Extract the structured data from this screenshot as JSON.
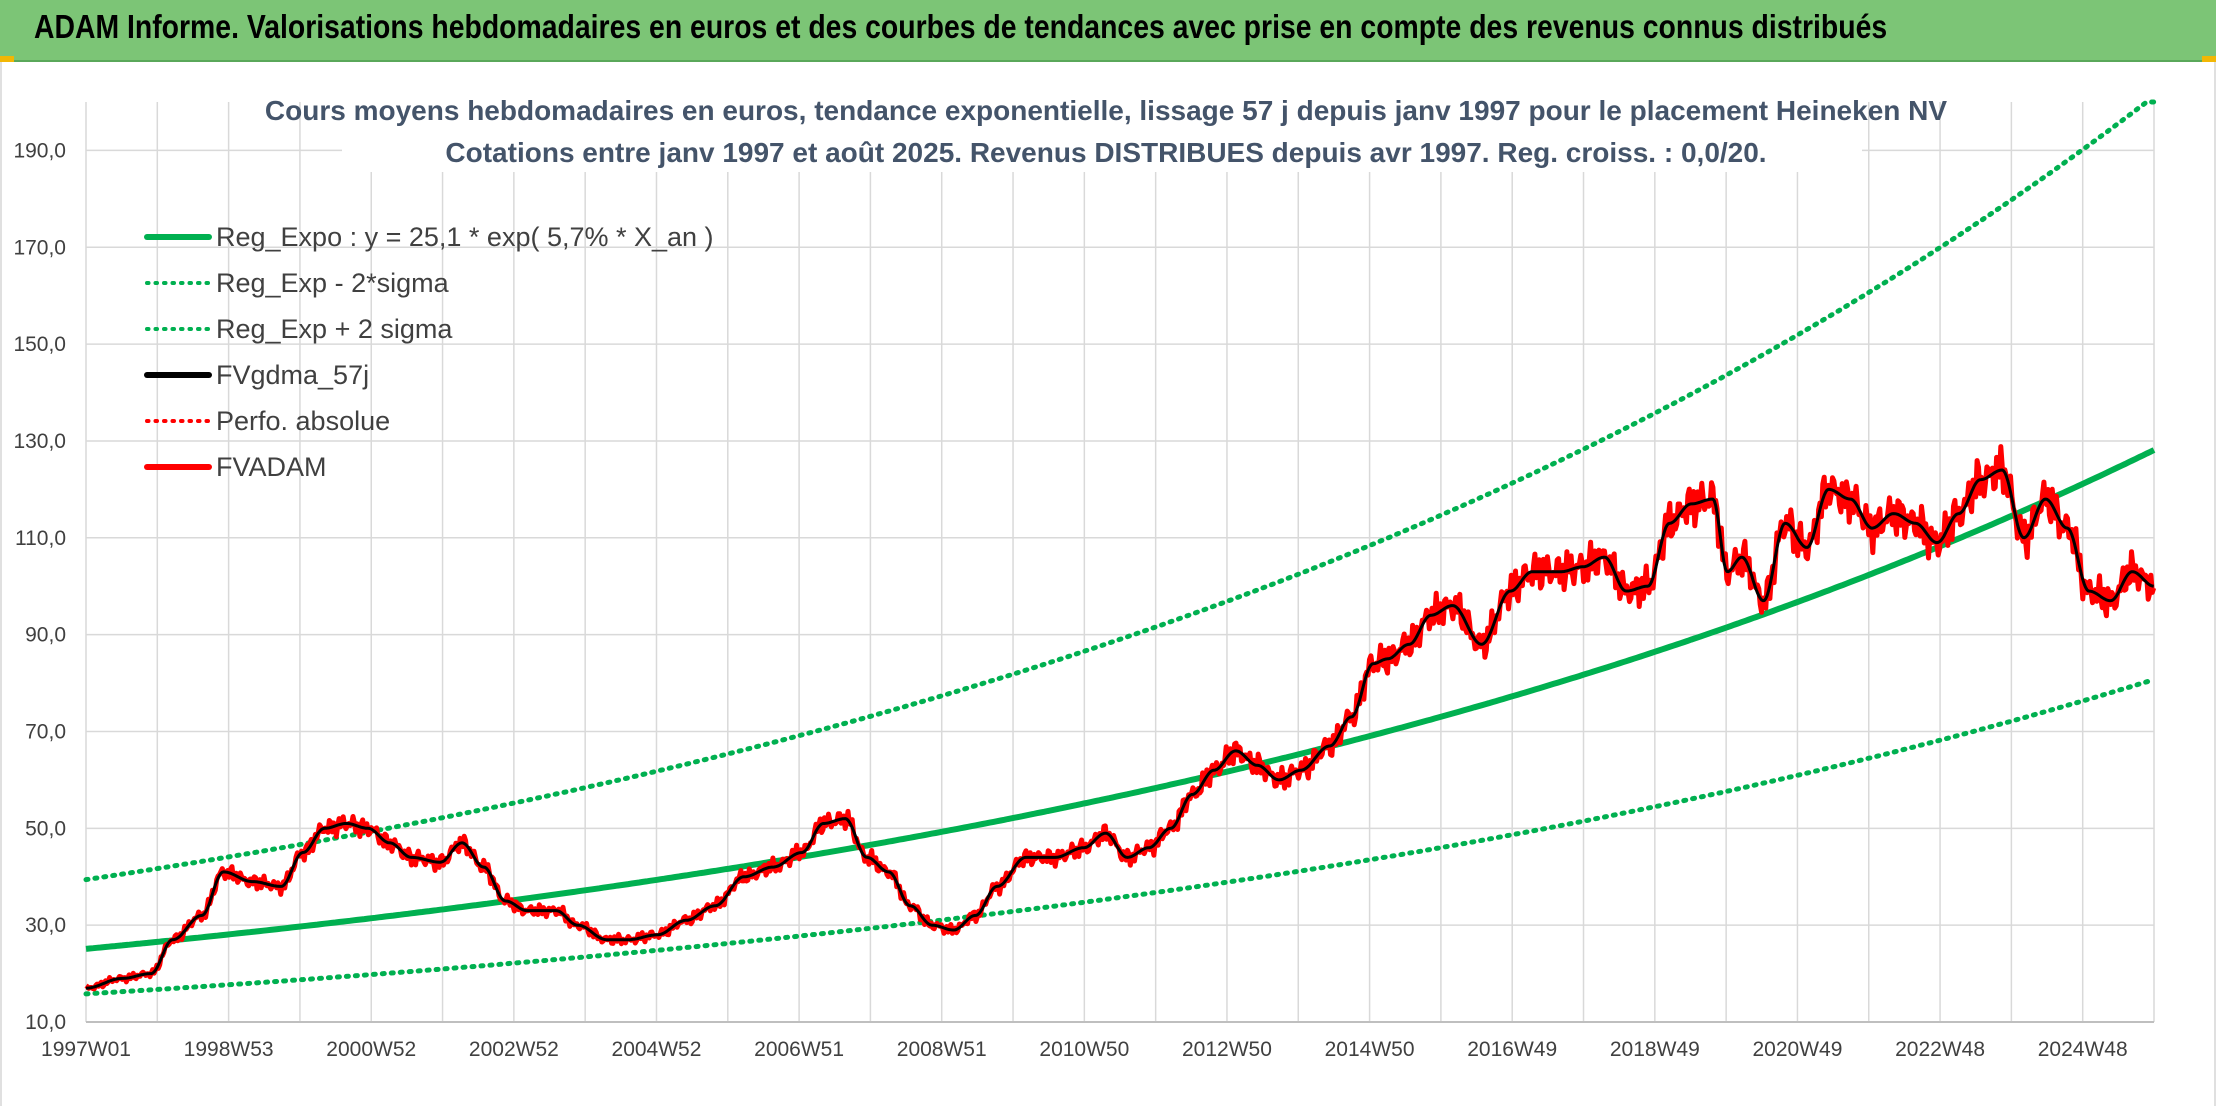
{
  "header": {
    "title": "ADAM Informe. Valorisations hebdomadaires en euros et des courbes de tendances avec prise en compte des revenus connus distribués",
    "background": "#7cc576"
  },
  "chart_data": {
    "type": "line",
    "title": "Cours moyens hebdomadaires en euros, tendance exponentielle, lissage 57 j depuis janv 1997 pour le placement Heineken NV",
    "subtitle": "Cotations entre janv 1997 et août 2025. Revenus DISTRIBUES depuis avr 1997. Reg. croiss. : 0,0/20.",
    "x_tick_labels": [
      "1997W01",
      "1998W53",
      "2000W52",
      "2002W52",
      "2004W52",
      "2006W51",
      "2008W51",
      "2010W50",
      "2012W50",
      "2014W50",
      "2016W49",
      "2018W49",
      "2020W49",
      "2022W48",
      "2024W48"
    ],
    "y_tick_labels": [
      "10,0",
      "30,0",
      "50,0",
      "70,0",
      "90,0",
      "110,0",
      "130,0",
      "150,0",
      "170,0",
      "190,0"
    ],
    "ylim": [
      10,
      200
    ],
    "xlim": [
      1997.0,
      2025.6
    ],
    "grid": true,
    "legend_position": "top-left",
    "regression": {
      "a": 25.1,
      "rate": 0.057,
      "band_low_factor": 0.63,
      "band_high_factor": 1.57
    },
    "series": [
      {
        "name": "Reg_Expo : y = 25,1 * exp( 5,7% *  X_an )",
        "color": "#00b050",
        "style": "solid"
      },
      {
        "name": "Reg_Exp - 2*sigma",
        "color": "#00b050",
        "style": "dotted"
      },
      {
        "name": "Reg_Exp + 2 sigma",
        "color": "#00b050",
        "style": "dotted"
      },
      {
        "name": "FVgdma_57j",
        "color": "#000000",
        "style": "solid"
      },
      {
        "name": "Perfo. absolue",
        "color": "#ff0000",
        "style": "dotted"
      },
      {
        "name": "FVADAM",
        "color": "#ff0000",
        "style": "solid"
      }
    ],
    "price_points": {
      "x": [
        1997.0,
        1997.5,
        1997.9,
        1998.2,
        1998.6,
        1998.9,
        1999.3,
        1999.7,
        2000.0,
        2000.3,
        2000.6,
        2000.9,
        2001.2,
        2001.5,
        2001.9,
        2002.2,
        2002.5,
        2002.8,
        2003.1,
        2003.5,
        2003.8,
        2004.2,
        2004.5,
        2004.9,
        2005.3,
        2005.7,
        2006.1,
        2006.5,
        2006.9,
        2007.2,
        2007.5,
        2007.8,
        2008.1,
        2008.4,
        2008.7,
        2009.0,
        2009.3,
        2009.6,
        2010.0,
        2010.4,
        2010.8,
        2011.1,
        2011.4,
        2011.7,
        2012.0,
        2012.3,
        2012.6,
        2012.9,
        2013.2,
        2013.5,
        2013.8,
        2014.2,
        2014.5,
        2014.8,
        2015.0,
        2015.3,
        2015.6,
        2015.9,
        2016.3,
        2016.7,
        2017.0,
        2017.4,
        2017.7,
        2018.0,
        2018.3,
        2018.6,
        2018.9,
        2019.2,
        2019.5,
        2019.7,
        2019.9,
        2020.2,
        2020.5,
        2020.8,
        2021.1,
        2021.4,
        2021.7,
        2022.0,
        2022.3,
        2022.6,
        2022.9,
        2023.2,
        2023.5,
        2023.8,
        2024.1,
        2024.4,
        2024.7,
        2025.0,
        2025.3,
        2025.6
      ],
      "y": [
        17,
        19,
        20,
        27,
        32,
        41,
        39,
        38,
        45,
        50,
        51,
        50,
        47,
        44,
        43,
        47,
        42,
        35,
        33,
        33,
        30,
        27,
        27,
        28,
        31,
        34,
        40,
        42,
        45,
        51,
        52,
        44,
        41,
        34,
        30,
        29,
        32,
        38,
        44,
        44,
        46,
        49,
        44,
        46,
        50,
        57,
        62,
        66,
        63,
        60,
        62,
        67,
        73,
        84,
        85,
        88,
        94,
        96,
        88,
        99,
        103,
        103,
        104,
        106,
        99,
        100,
        113,
        117,
        118,
        103,
        106,
        97,
        113,
        108,
        120,
        118,
        112,
        115,
        113,
        109,
        115,
        122,
        124,
        110,
        118,
        112,
        99,
        97,
        103,
        100
      ]
    }
  }
}
